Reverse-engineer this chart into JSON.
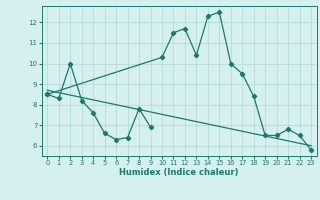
{
  "line1_x": [
    0,
    1,
    2,
    3,
    4,
    5,
    6,
    7,
    8,
    9
  ],
  "line1_y": [
    8.5,
    8.3,
    10.0,
    8.2,
    7.6,
    6.6,
    6.3,
    6.4,
    7.8,
    6.9
  ],
  "line2_x": [
    0,
    10,
    11,
    12,
    13,
    14,
    15,
    16,
    17,
    18,
    19,
    20,
    21,
    22,
    23
  ],
  "line2_y": [
    8.5,
    10.3,
    11.5,
    11.7,
    10.4,
    12.3,
    12.5,
    10.0,
    9.5,
    8.4,
    6.5,
    6.5,
    6.8,
    6.5,
    5.8
  ],
  "line3_x": [
    0,
    23
  ],
  "line3_y": [
    8.7,
    6.0
  ],
  "line_color": "#1a7a6e",
  "bg_color": "#d6f0f0",
  "grid_color": "#b0d8d8",
  "xlabel": "Humidex (Indice chaleur)",
  "xlim": [
    -0.5,
    23.5
  ],
  "ylim": [
    5.5,
    12.8
  ],
  "yticks": [
    6,
    7,
    8,
    9,
    10,
    11,
    12
  ],
  "xticks": [
    0,
    1,
    2,
    3,
    4,
    5,
    6,
    7,
    8,
    9,
    10,
    11,
    12,
    13,
    14,
    15,
    16,
    17,
    18,
    19,
    20,
    21,
    22,
    23
  ],
  "marker": "D",
  "markersize": 2.2,
  "linewidth": 0.9
}
